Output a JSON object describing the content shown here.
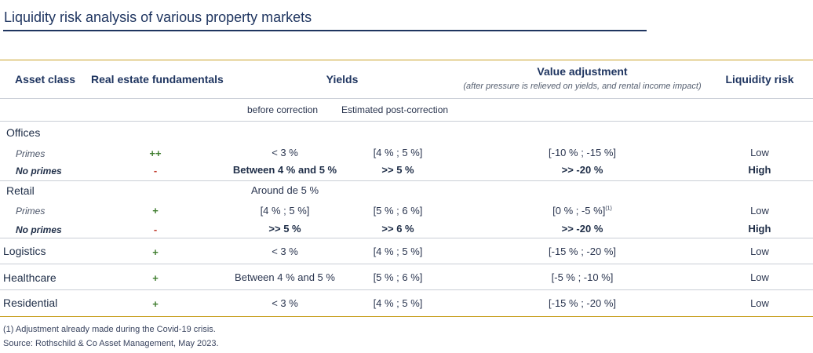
{
  "title": "Liquidity risk analysis of various property markets",
  "headers": {
    "asset_class": "Asset class",
    "fundamentals": "Real estate fundamentals",
    "yields": "Yields",
    "value_adjustment": "Value adjustment",
    "value_adjustment_note": "(after pressure is relieved on yields, and rental income impact)",
    "liquidity_risk": "Liquidity risk",
    "before_correction": "before correction",
    "post_correction": "Estimated post-correction"
  },
  "offices": {
    "label": "Offices",
    "primes": {
      "label": "Primes",
      "fund": "++",
      "before": "< 3 %",
      "post": "[4 % ; 5 %]",
      "value": "[-10 % ; -15 %]",
      "risk": "Low"
    },
    "noprimes": {
      "label": "No primes",
      "fund": "-",
      "before": "Between 4 % and 5 %",
      "post": ">> 5 %",
      "value": ">> -20 %",
      "risk": "High"
    }
  },
  "retail": {
    "label": "Retail",
    "note": "Around de 5 %",
    "primes": {
      "label": "Primes",
      "fund": "+",
      "before": "[4 % ; 5 %]",
      "post": "[5 % ; 6 %]",
      "value": "[0 % ; -5 %]",
      "value_sup": "(1)",
      "risk": "Low"
    },
    "noprimes": {
      "label": "No primes",
      "fund": "-",
      "before": ">> 5 %",
      "post": ">> 6 %",
      "value": ">> -20 %",
      "risk": "High"
    }
  },
  "logistics": {
    "label": "Logistics",
    "fund": "+",
    "before": "< 3 %",
    "post": "[4 % ; 5 %]",
    "value": "[-15 % ; -20 %]",
    "risk": "Low"
  },
  "healthcare": {
    "label": "Healthcare",
    "fund": "+",
    "before": "Between 4 % and 5 %",
    "post": "[5 % ; 6 %]",
    "value": "[-5 % ; -10 %]",
    "risk": "Low"
  },
  "residential": {
    "label": "Residential",
    "fund": "+",
    "before": "< 3 %",
    "post": "[4 % ; 5 %]",
    "value": "[-15 % ; -20 %]",
    "risk": "Low"
  },
  "footnotes": {
    "note1": "(1) Adjustment already made during the Covid-19 crisis.",
    "source": "Source: Rothschild & Co Asset Management, May 2023."
  },
  "colors": {
    "positive": "#3f7d2e",
    "negative": "#c0392b",
    "accent_rule": "#c9a227",
    "title": "#1f3560"
  }
}
